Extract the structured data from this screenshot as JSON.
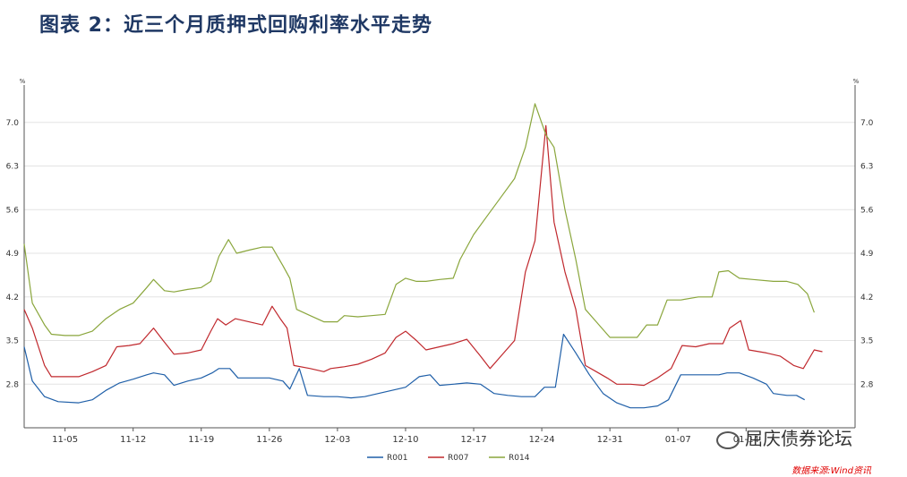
{
  "title": "图表 2：近三个月质押式回购利率水平走势",
  "watermark": "屈庆债券论坛",
  "source": "数据来源:Wind资讯",
  "chart_data": {
    "type": "line",
    "unit_left": "%",
    "unit_right": "%",
    "ylim": [
      2.1,
      7.6
    ],
    "yticks": [
      2.8,
      3.5,
      4.2,
      4.9,
      5.6,
      6.3,
      7.0
    ],
    "xlim": [
      0,
      61
    ],
    "xticks": [
      {
        "label": "11-05",
        "x": 3
      },
      {
        "label": "11-12",
        "x": 8
      },
      {
        "label": "11-19",
        "x": 13
      },
      {
        "label": "11-26",
        "x": 18
      },
      {
        "label": "12-03",
        "x": 23
      },
      {
        "label": "12-10",
        "x": 28
      },
      {
        "label": "12-17",
        "x": 33
      },
      {
        "label": "12-24",
        "x": 38
      },
      {
        "label": "12-31",
        "x": 43
      },
      {
        "label": "01-07",
        "x": 48
      },
      {
        "label": "01-14",
        "x": 53
      }
    ],
    "series": [
      {
        "name": "R001",
        "color": "#1f5fa8",
        "points": [
          [
            0,
            3.4
          ],
          [
            0.6,
            2.85
          ],
          [
            1.5,
            2.6
          ],
          [
            2.5,
            2.52
          ],
          [
            4,
            2.5
          ],
          [
            5,
            2.55
          ],
          [
            6,
            2.7
          ],
          [
            7,
            2.82
          ],
          [
            8,
            2.88
          ],
          [
            9,
            2.95
          ],
          [
            9.5,
            2.98
          ],
          [
            10.3,
            2.95
          ],
          [
            11,
            2.78
          ],
          [
            12,
            2.85
          ],
          [
            13,
            2.9
          ],
          [
            13.8,
            2.98
          ],
          [
            14.3,
            3.05
          ],
          [
            15.1,
            3.05
          ],
          [
            15.7,
            2.9
          ],
          [
            17,
            2.9
          ],
          [
            18,
            2.9
          ],
          [
            19,
            2.85
          ],
          [
            19.5,
            2.72
          ],
          [
            20.2,
            3.05
          ],
          [
            20.8,
            2.62
          ],
          [
            22,
            2.6
          ],
          [
            23,
            2.6
          ],
          [
            24,
            2.58
          ],
          [
            25,
            2.6
          ],
          [
            26,
            2.65
          ],
          [
            27,
            2.7
          ],
          [
            28,
            2.75
          ],
          [
            29,
            2.92
          ],
          [
            29.8,
            2.95
          ],
          [
            30.5,
            2.78
          ],
          [
            31.5,
            2.8
          ],
          [
            32.5,
            2.82
          ],
          [
            33.5,
            2.8
          ],
          [
            34.5,
            2.65
          ],
          [
            35.5,
            2.62
          ],
          [
            36.5,
            2.6
          ],
          [
            37.5,
            2.6
          ],
          [
            38.2,
            2.75
          ],
          [
            39,
            2.75
          ],
          [
            39.6,
            3.6
          ],
          [
            40.5,
            3.3
          ],
          [
            41.5,
            2.95
          ],
          [
            42.5,
            2.65
          ],
          [
            43.5,
            2.5
          ],
          [
            44.5,
            2.42
          ],
          [
            45.5,
            2.42
          ],
          [
            46.5,
            2.45
          ],
          [
            47.3,
            2.55
          ],
          [
            48.2,
            2.95
          ],
          [
            49.5,
            2.95
          ],
          [
            51,
            2.95
          ],
          [
            51.6,
            2.98
          ],
          [
            52.5,
            2.98
          ],
          [
            53.5,
            2.9
          ],
          [
            54.5,
            2.8
          ],
          [
            55,
            2.65
          ],
          [
            56,
            2.62
          ],
          [
            56.7,
            2.62
          ],
          [
            57.3,
            2.55
          ]
        ]
      },
      {
        "name": "R007",
        "color": "#c0282d",
        "points": [
          [
            0,
            4.0
          ],
          [
            0.6,
            3.7
          ],
          [
            1.5,
            3.1
          ],
          [
            2,
            2.92
          ],
          [
            3,
            2.92
          ],
          [
            4,
            2.92
          ],
          [
            5,
            3.0
          ],
          [
            6,
            3.1
          ],
          [
            6.8,
            3.4
          ],
          [
            7.7,
            3.42
          ],
          [
            8.5,
            3.45
          ],
          [
            9.5,
            3.7
          ],
          [
            10.2,
            3.5
          ],
          [
            11,
            3.28
          ],
          [
            12,
            3.3
          ],
          [
            13,
            3.35
          ],
          [
            13.7,
            3.65
          ],
          [
            14.2,
            3.85
          ],
          [
            14.8,
            3.75
          ],
          [
            15.5,
            3.85
          ],
          [
            16.5,
            3.8
          ],
          [
            17.5,
            3.75
          ],
          [
            18.2,
            4.05
          ],
          [
            18.8,
            3.85
          ],
          [
            19.3,
            3.7
          ],
          [
            19.8,
            3.1
          ],
          [
            21,
            3.05
          ],
          [
            22,
            3.0
          ],
          [
            22.5,
            3.05
          ],
          [
            23.5,
            3.08
          ],
          [
            24.5,
            3.12
          ],
          [
            25.5,
            3.2
          ],
          [
            26.5,
            3.3
          ],
          [
            27.3,
            3.55
          ],
          [
            28,
            3.65
          ],
          [
            28.8,
            3.5
          ],
          [
            29.5,
            3.35
          ],
          [
            30.5,
            3.4
          ],
          [
            31.5,
            3.45
          ],
          [
            32.5,
            3.52
          ],
          [
            33.5,
            3.25
          ],
          [
            34.2,
            3.05
          ],
          [
            35,
            3.25
          ],
          [
            36,
            3.5
          ],
          [
            36.8,
            4.6
          ],
          [
            37.5,
            5.1
          ],
          [
            38.3,
            6.95
          ],
          [
            38.9,
            5.4
          ],
          [
            39.7,
            4.6
          ],
          [
            40.5,
            4.0
          ],
          [
            41.2,
            3.1
          ],
          [
            42,
            3.0
          ],
          [
            42.8,
            2.9
          ],
          [
            43.5,
            2.8
          ],
          [
            44.5,
            2.8
          ],
          [
            45.5,
            2.78
          ],
          [
            46.5,
            2.9
          ],
          [
            47.5,
            3.05
          ],
          [
            48.3,
            3.42
          ],
          [
            49.3,
            3.4
          ],
          [
            50.3,
            3.45
          ],
          [
            51.3,
            3.45
          ],
          [
            51.8,
            3.7
          ],
          [
            52.6,
            3.82
          ],
          [
            53.2,
            3.35
          ],
          [
            54.5,
            3.3
          ],
          [
            55.5,
            3.25
          ],
          [
            56.5,
            3.1
          ],
          [
            57.2,
            3.05
          ],
          [
            58,
            3.35
          ],
          [
            58.6,
            3.32
          ]
        ]
      },
      {
        "name": "R014",
        "color": "#8aa63c",
        "points": [
          [
            0,
            5.05
          ],
          [
            0.6,
            4.1
          ],
          [
            1.5,
            3.75
          ],
          [
            2,
            3.6
          ],
          [
            3,
            3.58
          ],
          [
            4,
            3.58
          ],
          [
            5,
            3.65
          ],
          [
            6,
            3.85
          ],
          [
            7,
            4.0
          ],
          [
            8,
            4.1
          ],
          [
            9,
            4.35
          ],
          [
            9.5,
            4.48
          ],
          [
            10.3,
            4.3
          ],
          [
            11,
            4.28
          ],
          [
            12,
            4.32
          ],
          [
            13,
            4.35
          ],
          [
            13.7,
            4.45
          ],
          [
            14.3,
            4.85
          ],
          [
            15,
            5.12
          ],
          [
            15.6,
            4.9
          ],
          [
            16.5,
            4.95
          ],
          [
            17.5,
            5.0
          ],
          [
            18.2,
            5.0
          ],
          [
            19,
            4.7
          ],
          [
            19.5,
            4.5
          ],
          [
            20,
            4.0
          ],
          [
            21,
            3.9
          ],
          [
            22,
            3.8
          ],
          [
            23,
            3.8
          ],
          [
            23.5,
            3.9
          ],
          [
            24.5,
            3.88
          ],
          [
            25.5,
            3.9
          ],
          [
            26.5,
            3.92
          ],
          [
            27.3,
            4.4
          ],
          [
            28,
            4.5
          ],
          [
            28.8,
            4.45
          ],
          [
            29.5,
            4.45
          ],
          [
            30.5,
            4.48
          ],
          [
            31.5,
            4.5
          ],
          [
            32,
            4.8
          ],
          [
            33,
            5.2
          ],
          [
            34,
            5.5
          ],
          [
            35,
            5.8
          ],
          [
            36,
            6.1
          ],
          [
            36.8,
            6.6
          ],
          [
            37.5,
            7.3
          ],
          [
            38.3,
            6.8
          ],
          [
            38.9,
            6.6
          ],
          [
            39.7,
            5.6
          ],
          [
            40.5,
            4.8
          ],
          [
            41.2,
            4.0
          ],
          [
            42,
            3.8
          ],
          [
            43,
            3.55
          ],
          [
            44,
            3.55
          ],
          [
            45,
            3.55
          ],
          [
            45.7,
            3.75
          ],
          [
            46.5,
            3.75
          ],
          [
            47.2,
            4.15
          ],
          [
            48.2,
            4.15
          ],
          [
            49.5,
            4.2
          ],
          [
            50.5,
            4.2
          ],
          [
            51,
            4.6
          ],
          [
            51.7,
            4.62
          ],
          [
            52.5,
            4.5
          ],
          [
            53.5,
            4.48
          ],
          [
            55,
            4.45
          ],
          [
            56,
            4.45
          ],
          [
            56.8,
            4.4
          ],
          [
            57.5,
            4.25
          ],
          [
            58,
            3.95
          ]
        ]
      }
    ]
  }
}
